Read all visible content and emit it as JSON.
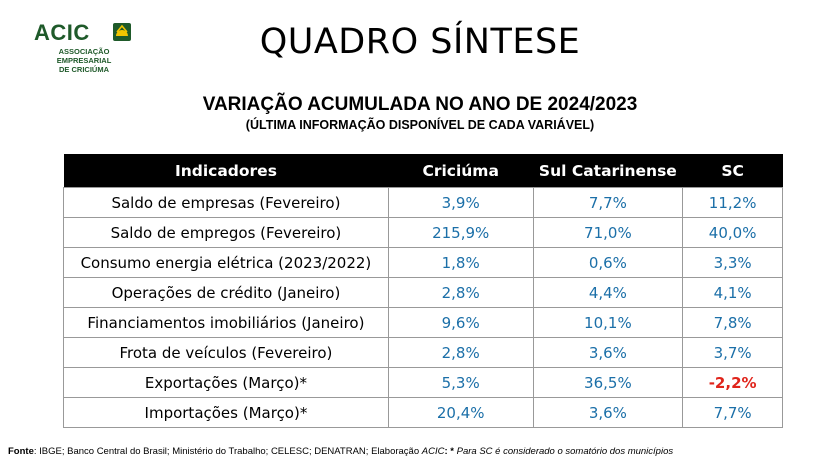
{
  "logo": {
    "word": "ACIC",
    "sub_line1": "ASSOCIAÇÃO EMPRESARIAL",
    "sub_line2": "DE CRICIÚMA",
    "colors": {
      "green": "#1f5a2a",
      "yellow": "#f2c500"
    }
  },
  "title": "QUADRO SÍNTESE",
  "subtitle": "VARIAÇÃO ACUMULADA NO ANO DE 2024/2023",
  "subtitle2": "(ÚLTIMA INFORMAÇÃO DISPONÍVEL DE CADA VARIÁVEL)",
  "table": {
    "headers": [
      "Indicadores",
      "Criciúma",
      "Sul Catarinense",
      "SC"
    ],
    "rows": [
      {
        "indicator": "Saldo de empresas (Fevereiro)",
        "criciuma": "3,9%",
        "sul": "7,7%",
        "sc": "11,2%"
      },
      {
        "indicator": "Saldo de empregos (Fevereiro)",
        "criciuma": "215,9%",
        "sul": "71,0%",
        "sc": "40,0%"
      },
      {
        "indicator": "Consumo energia elétrica (2023/2022)",
        "criciuma": "1,8%",
        "sul": "0,6%",
        "sc": "3,3%"
      },
      {
        "indicator": "Operações de crédito (Janeiro)",
        "criciuma": "2,8%",
        "sul": "4,4%",
        "sc": "4,1%"
      },
      {
        "indicator": "Financiamentos imobiliários (Janeiro)",
        "criciuma": "9,6%",
        "sul": "10,1%",
        "sc": "7,8%"
      },
      {
        "indicator": "Frota de veículos (Fevereiro)",
        "criciuma": "2,8%",
        "sul": "3,6%",
        "sc": "3,7%"
      },
      {
        "indicator": "Exportações (Março)*",
        "criciuma": "5,3%",
        "sul": "36,5%",
        "sc": "-2,2%"
      },
      {
        "indicator": "Importações (Março)*",
        "criciuma": "20,4%",
        "sul": "3,6%",
        "sc": "7,7%"
      }
    ],
    "colors": {
      "value": "#1b6fa8",
      "negative": "#e0241b",
      "header_bg": "#000000"
    }
  },
  "footer": {
    "label": "Fonte",
    "sources": ": IBGE; Banco Central do Brasil; Ministério do Trabalho; CELESC; DENATRAN; Elaboração ",
    "author": "ACIC",
    "note_mark": ": * ",
    "note": "Para SC é considerado o somatório dos municípios"
  }
}
